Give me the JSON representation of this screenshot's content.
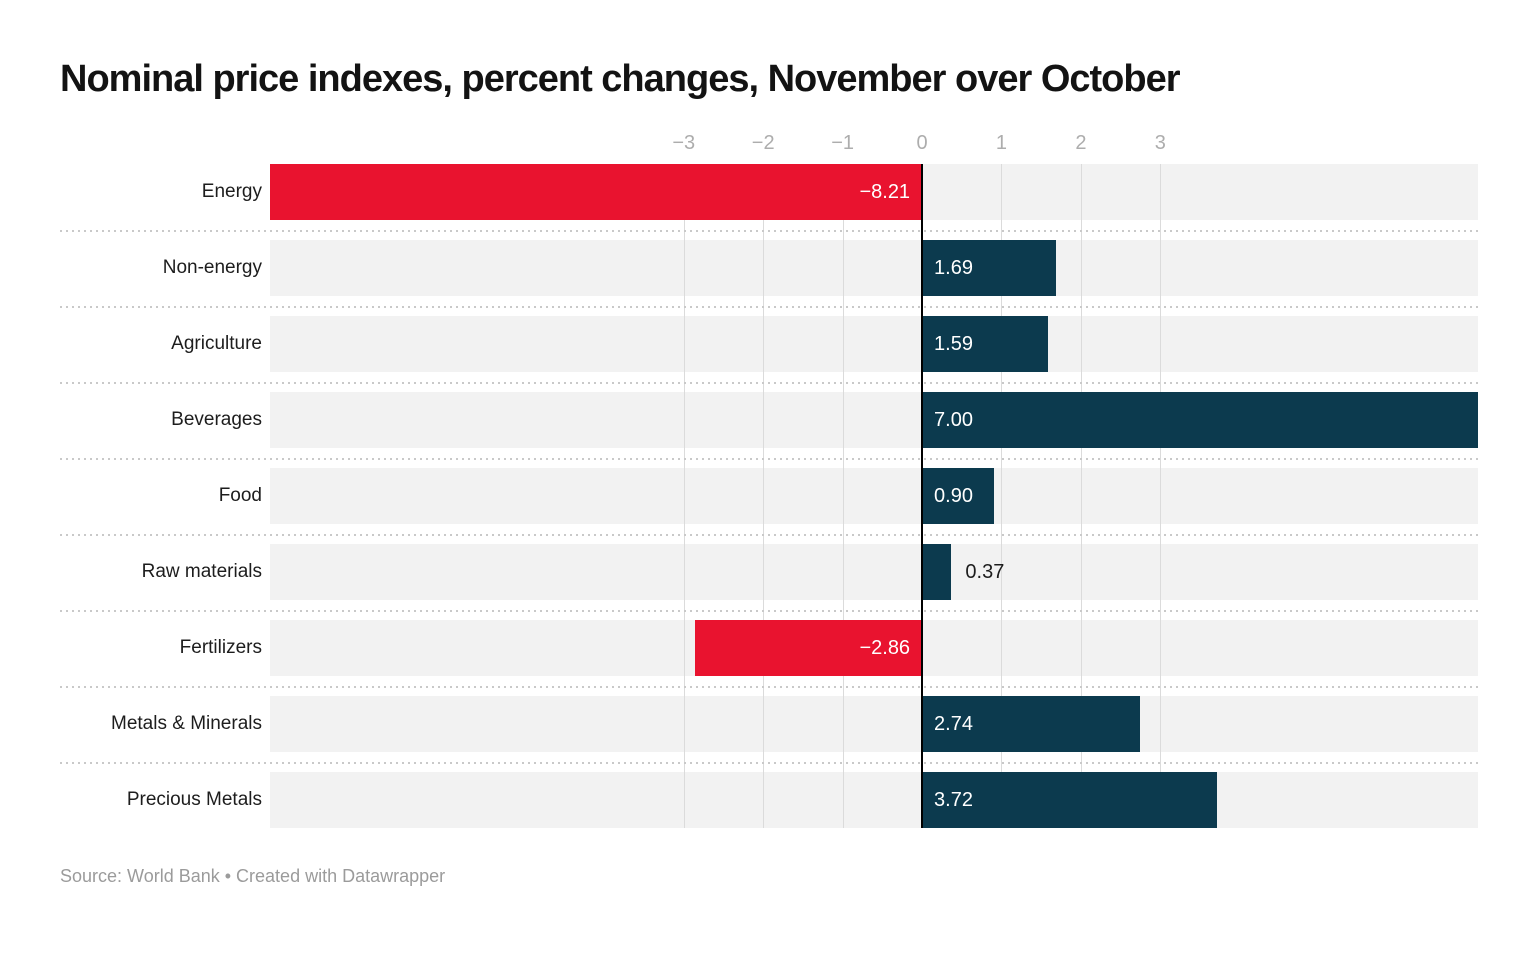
{
  "title": "Nominal price indexes, percent changes, November over October",
  "footer": {
    "text": "Source: World Bank • Created with Datawrapper",
    "source_label": "Source:",
    "source": "World Bank",
    "attribution": "Created with Datawrapper"
  },
  "chart_data": {
    "type": "bar",
    "orientation": "horizontal",
    "title": "Nominal price indexes, percent changes, November over October",
    "categories": [
      "Energy",
      "Non-energy",
      "Agriculture",
      "Beverages",
      "Food",
      "Raw materials",
      "Fertilizers",
      "Metals & Minerals",
      "Precious Metals"
    ],
    "values": [
      -8.21,
      1.69,
      1.59,
      7.0,
      0.9,
      0.37,
      -2.86,
      2.74,
      3.72
    ],
    "value_labels": [
      "−8.21",
      "1.69",
      "1.59",
      "7.00",
      "0.90",
      "0.37",
      "−2.86",
      "2.74",
      "3.72"
    ],
    "xlabel": "",
    "ylabel": "",
    "xlim": [
      -8.21,
      7.0
    ],
    "x_ticks": [
      -3,
      -2,
      -1,
      0,
      1,
      2,
      3
    ],
    "x_tick_labels": [
      "−3",
      "−2",
      "−1",
      "0",
      "1",
      "2",
      "3"
    ],
    "grid": true,
    "legend": false,
    "colors": {
      "positive_bar": "#0c3a4e",
      "negative_bar": "#e9132f",
      "row_background": "#f2f2f2",
      "gridline": "#dbdbdb",
      "zero_axis": "#000000",
      "tick_label": "#adadad",
      "category_label": "#1d1d1d",
      "value_label_inside": "#ffffff",
      "value_label_outside": "#1d1d1d"
    }
  }
}
